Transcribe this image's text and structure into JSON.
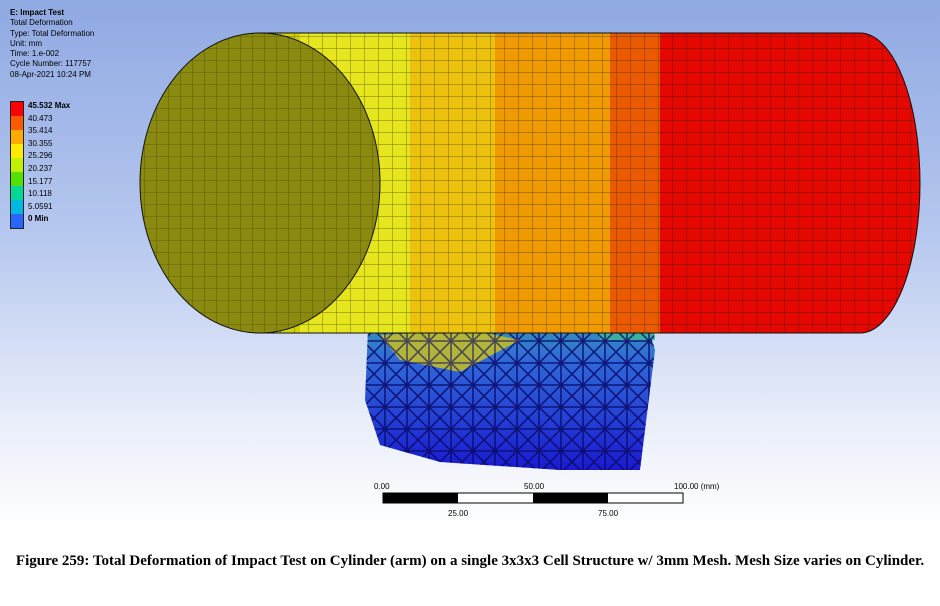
{
  "info": {
    "title": "E: Impact Test",
    "lines": [
      "Total Deformation",
      "Type: Total Deformation",
      "Unit: mm",
      "Time: 1.e-002",
      "Cycle Number: 117757",
      "08-Apr-2021 10:24 PM"
    ]
  },
  "legend": {
    "labels": [
      "45.532 Max",
      "40.473",
      "35.414",
      "30.355",
      "25.296",
      "20.237",
      "15.177",
      "10.118",
      "5.0591",
      "0 Min"
    ],
    "colors": [
      "#ff0000",
      "#ff5a00",
      "#ffaa00",
      "#ffea00",
      "#bff000",
      "#55e000",
      "#00d896",
      "#00b8e0",
      "#2a64ff",
      "#0000ff"
    ]
  },
  "scale_bar": {
    "top_labels": [
      "0.00",
      "50.00",
      "100.00 (mm)"
    ],
    "bottom_labels": [
      "25.00",
      "75.00"
    ]
  },
  "caption": "Figure 259: Total Deformation of Impact Test on Cylinder (arm) on a single 3x3x3 Cell Structure w/ 3mm Mesh. Mesh Size varies on Cylinder."
}
